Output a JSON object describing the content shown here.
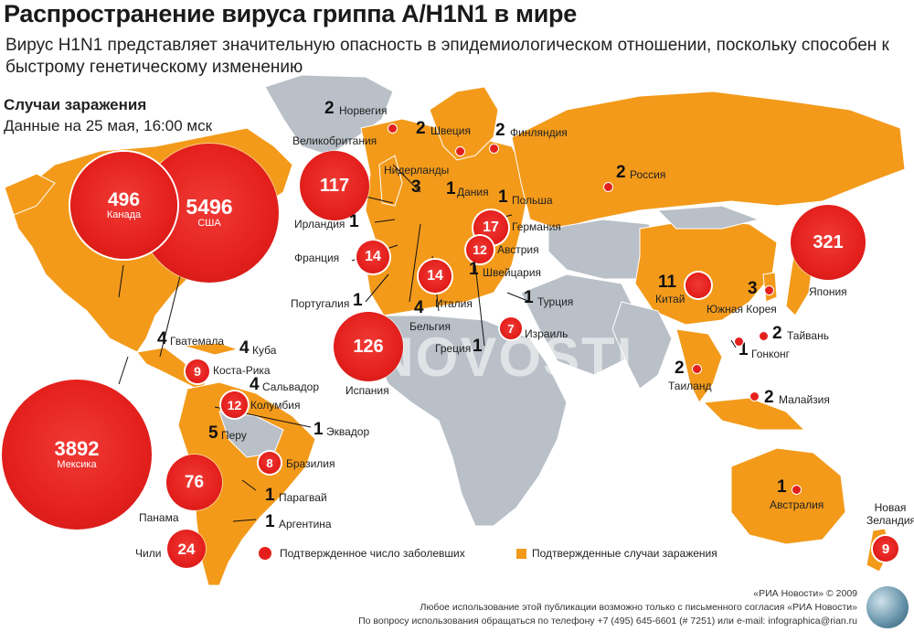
{
  "title": "Распространение вируса гриппа A/H1N1 в мире",
  "subtitle": "Вирус H1N1 представляет значительную опасность в эпидемиологическом отношении, поскольку способен к быстрому генетическому изменению",
  "cases_heading": "Случаи заражения",
  "cases_date": "Данные на 25 мая, 16:00 мск",
  "watermark": "RIANOVOSTI",
  "legend": {
    "confirmed_count": "Подтвержденное число заболевших",
    "confirmed_cases": "Подтвержденные случаи заражения"
  },
  "colors": {
    "affected": "#f39a1a",
    "unaffected": "#b9c0c8",
    "bubble": "#e4201d",
    "ocean": "#ffffff"
  },
  "footer": {
    "line1": "«РИА Новости» © 2009",
    "line2": "Любое использование этой публикации возможно только с письменного согласия «РИА Новости»",
    "line3": "По вопросу использования обращаться по телефону +7 (495) 645-6601 (# 7251) или e-mail: infographica@rian.ru"
  },
  "countries": {
    "usa": {
      "name": "США",
      "count": "5496"
    },
    "canada": {
      "name": "Канада",
      "count": "496"
    },
    "mexico": {
      "name": "Мексика",
      "count": "3892"
    },
    "uk": {
      "name": "Великобритания",
      "count": "117"
    },
    "spain": {
      "name": "Испания",
      "count": "126"
    },
    "japan": {
      "name": "Япония",
      "count": "321"
    },
    "panama": {
      "name": "Панама",
      "count": "76"
    },
    "chile": {
      "name": "Чили",
      "count": "24"
    },
    "germany": {
      "name": "Германия",
      "count": "17"
    },
    "france": {
      "name": "Франция",
      "count": "14"
    },
    "italy": {
      "name": "Италия",
      "count": "14"
    },
    "austria": {
      "name": "Австрия",
      "count": "12"
    },
    "colombia": {
      "name": "Колумбия",
      "count": "12"
    },
    "costa_rica": {
      "name": "Коста-Рика",
      "count": "9"
    },
    "nz": {
      "name": "Новая Зеландия",
      "count": "9"
    },
    "brazil": {
      "name": "Бразилия",
      "count": "8"
    },
    "israel": {
      "name": "Израиль",
      "count": "7"
    },
    "peru": {
      "name": "Перу",
      "count": "5"
    },
    "china": {
      "name": "Китай",
      "count": "11"
    },
    "norway": {
      "name": "Норвегия",
      "count": "2"
    },
    "sweden": {
      "name": "Швеция",
      "count": "2"
    },
    "finland": {
      "name": "Финляндия",
      "count": "2"
    },
    "russia": {
      "name": "Россия",
      "count": "2"
    },
    "netherlands": {
      "name": "Нидерланды",
      "count": "3"
    },
    "denmark": {
      "name": "Дания",
      "count": "1"
    },
    "poland": {
      "name": "Польша",
      "count": "1"
    },
    "ireland": {
      "name": "Ирландия",
      "count": "1"
    },
    "switzerland": {
      "name": "Швейцария",
      "count": "1"
    },
    "portugal": {
      "name": "Португалия",
      "count": "1"
    },
    "belgium": {
      "name": "Бельгия",
      "count": "4"
    },
    "turkey": {
      "name": "Турция",
      "count": "1"
    },
    "greece": {
      "name": "Греция",
      "count": "1"
    },
    "guatemala": {
      "name": "Гватемала",
      "count": "4"
    },
    "cuba": {
      "name": "Куба",
      "count": "4"
    },
    "salvador": {
      "name": "Сальвадор",
      "count": "4"
    },
    "ecuador": {
      "name": "Эквадор",
      "count": "1"
    },
    "paraguay": {
      "name": "Парагвай",
      "count": "1"
    },
    "argentina": {
      "name": "Аргентина",
      "count": "1"
    },
    "south_korea": {
      "name": "Южная Корея",
      "count": "3"
    },
    "taiwan": {
      "name": "Тайвань",
      "count": "2"
    },
    "hongkong": {
      "name": "Гонконг",
      "count": "1"
    },
    "thailand": {
      "name": "Таиланд",
      "count": "2"
    },
    "malaysia": {
      "name": "Малайзия",
      "count": "2"
    },
    "australia": {
      "name": "Австралия",
      "count": "1"
    }
  }
}
